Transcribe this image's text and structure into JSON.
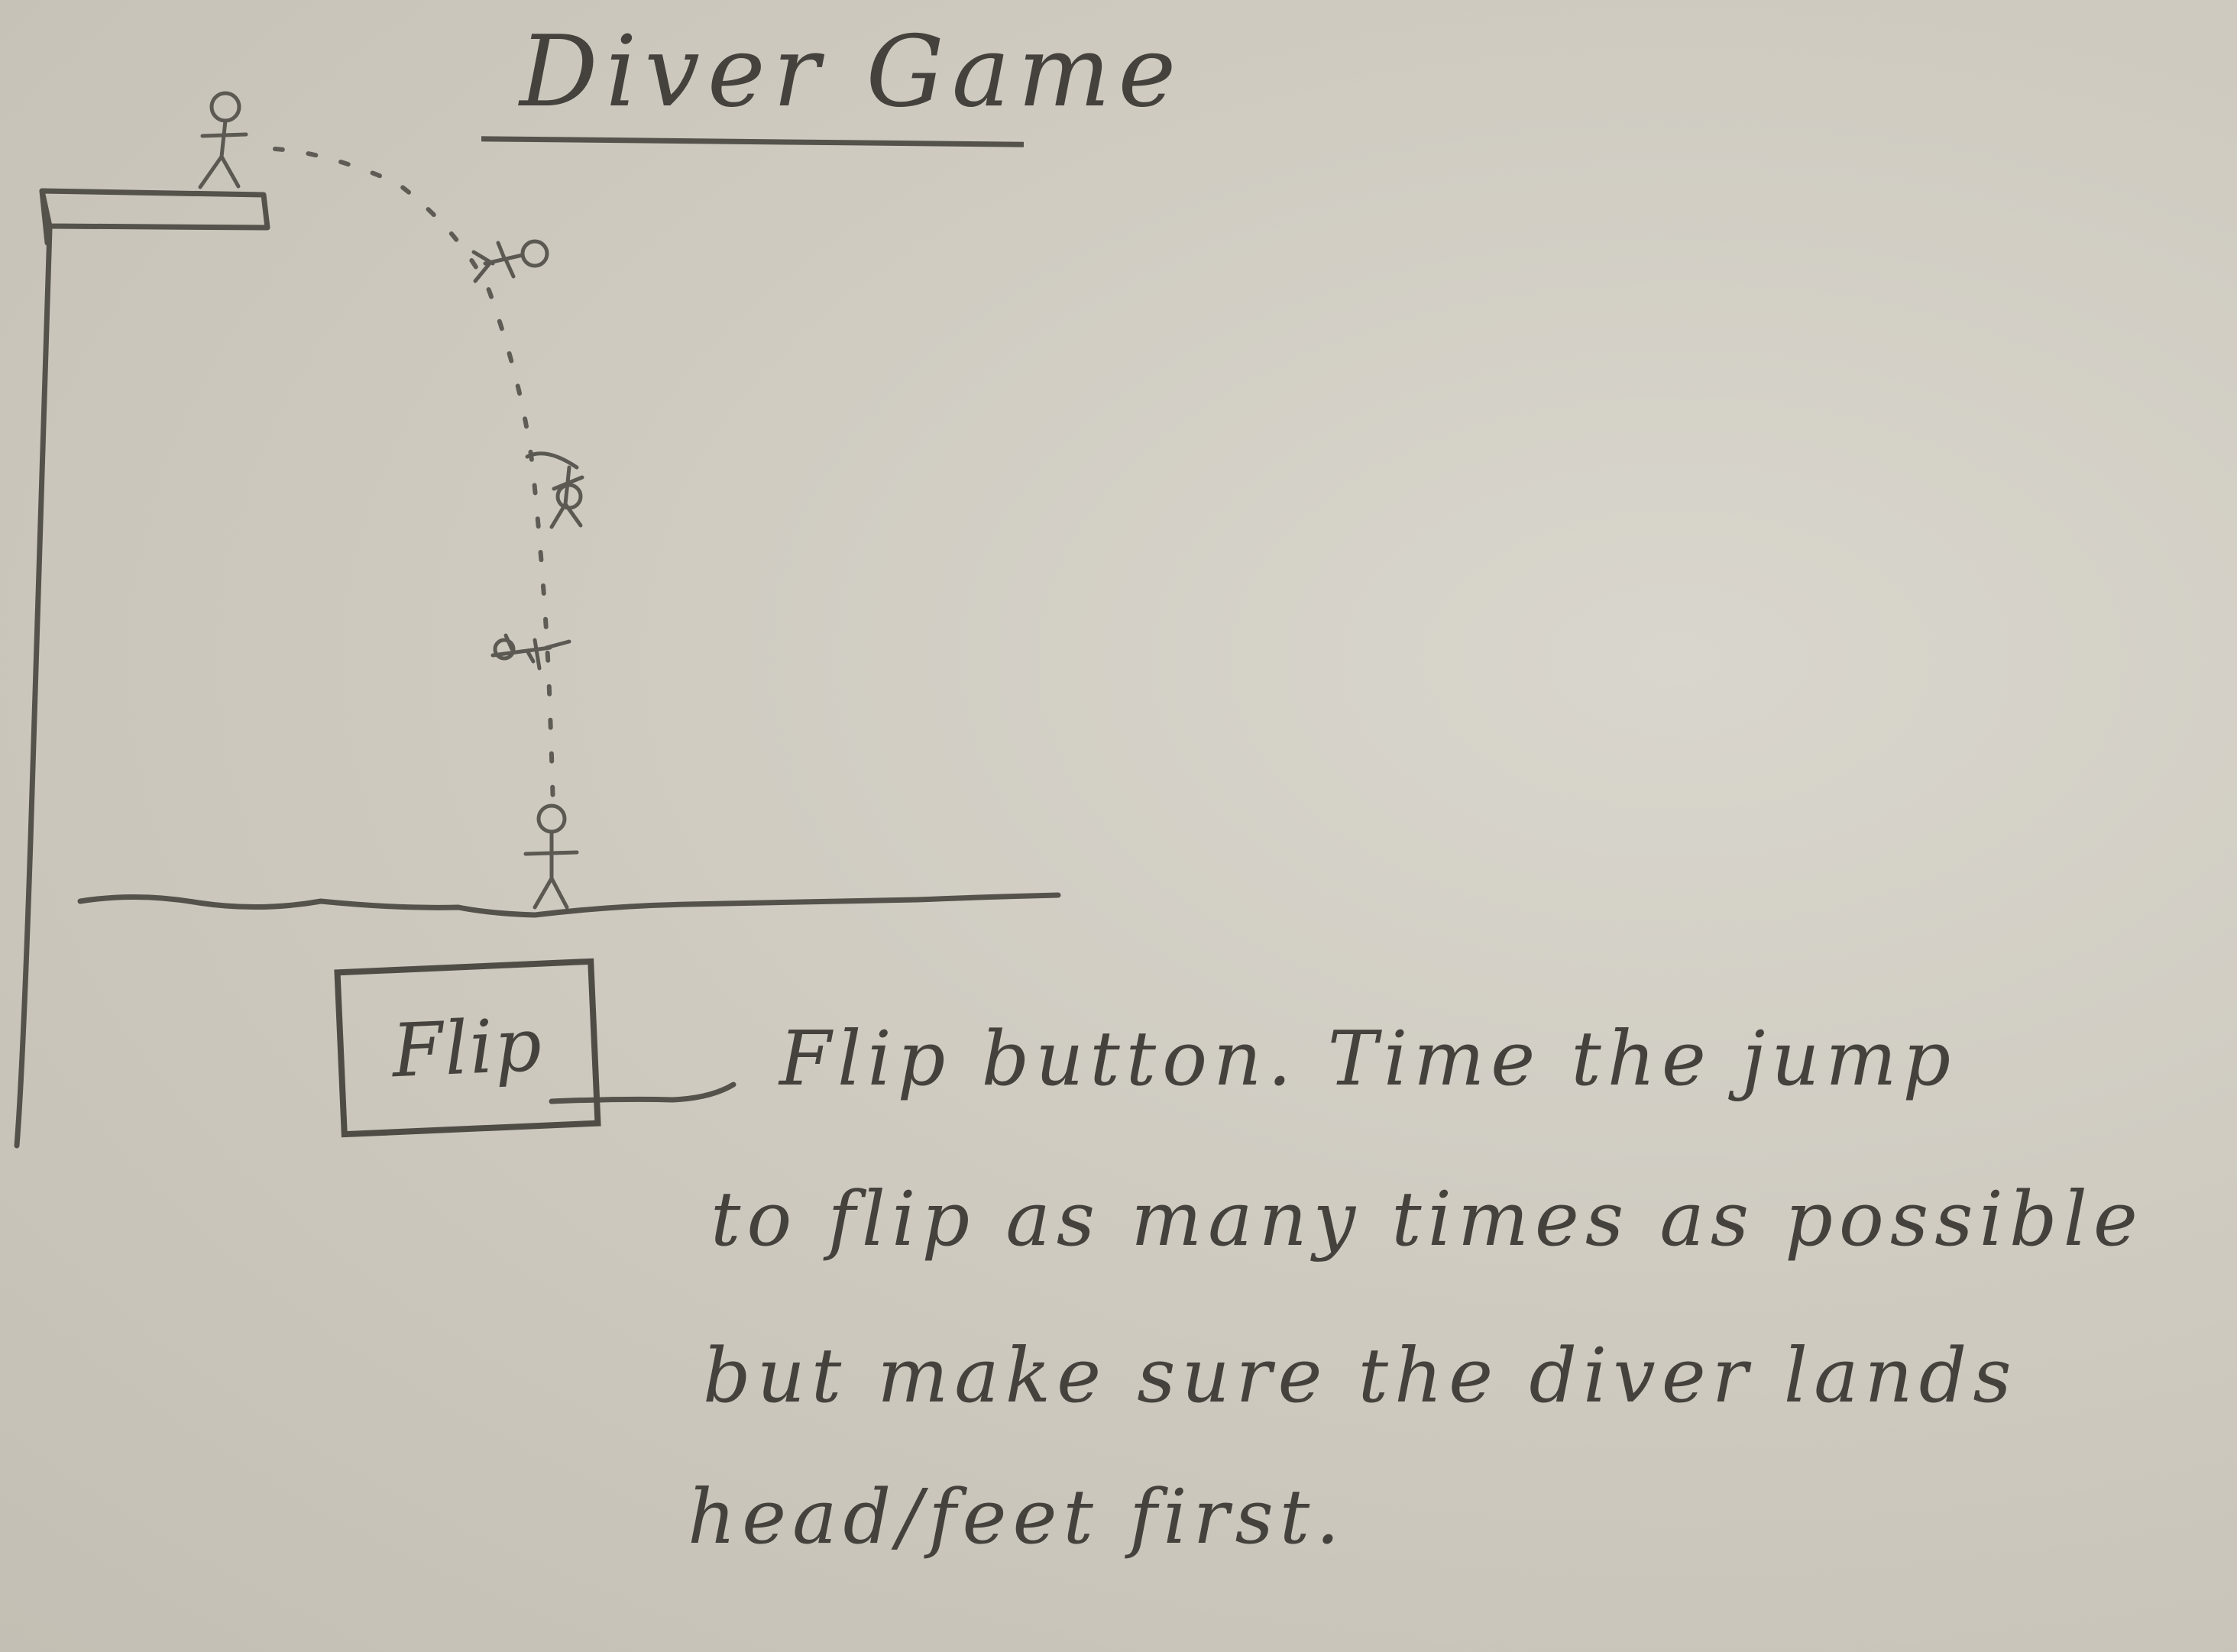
{
  "sketch": {
    "title": "Diver Game",
    "flip_button_label": "Flip",
    "annotation_lines": [
      "Flip button. Time the jump",
      "to flip as many times as possible",
      "but make sure the diver lands",
      "head/feet first."
    ]
  },
  "colors": {
    "paper": "#cfcbc1",
    "pencil": "#55524c"
  },
  "icons": [
    "diver-standing-icon",
    "diver-tuck-icon",
    "diver-flip-icon",
    "diver-entry-icon",
    "diver-landed-icon"
  ]
}
